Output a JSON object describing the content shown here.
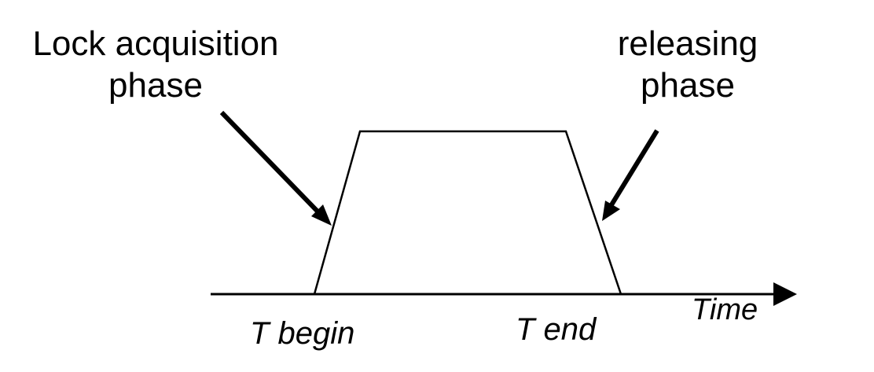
{
  "labels": {
    "lock_acquisition_line1": "Lock acquisition",
    "lock_acquisition_line2": "phase",
    "releasing_line1": "releasing",
    "releasing_line2": "phase",
    "time": "Time",
    "t_begin": "T begin",
    "t_end": "T end"
  },
  "colors": {
    "stroke": "#000000",
    "background": "#ffffff"
  }
}
